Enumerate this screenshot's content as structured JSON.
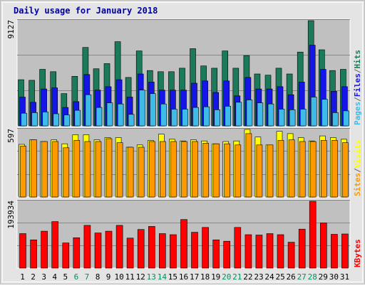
{
  "chart_data": {
    "type": "bar",
    "title": "Daily usage for January 2018",
    "categories": [
      "1",
      "2",
      "3",
      "4",
      "5",
      "6",
      "7",
      "8",
      "9",
      "10",
      "11",
      "12",
      "13",
      "14",
      "15",
      "16",
      "17",
      "18",
      "19",
      "20",
      "21",
      "22",
      "23",
      "24",
      "25",
      "26",
      "27",
      "28",
      "29",
      "30",
      "31"
    ],
    "weekend_days": [
      "6",
      "7",
      "13",
      "14",
      "20",
      "21",
      "27",
      "28"
    ],
    "panels": [
      {
        "id": "hits",
        "ymax_label": "9127",
        "ylim": [
          0,
          9127
        ],
        "legend": [
          "Pages",
          "/",
          "Files",
          "/",
          "Hits"
        ],
        "legend_colors": [
          "#3ebbe8",
          "#666666",
          "#1515e8",
          "#666666",
          "#1a7a5a"
        ],
        "series": [
          {
            "name": "Hits",
            "color": "#1a7a5a",
            "values": [
              4000,
              3950,
              4900,
              4700,
              2800,
              4300,
              6800,
              4950,
              5400,
              7300,
              4200,
              6500,
              4800,
              4700,
              4700,
              5000,
              6700,
              5200,
              5000,
              6500,
              5000,
              6100,
              4500,
              4400,
              5000,
              4500,
              6400,
              9127,
              6600,
              4800,
              4900
            ]
          },
          {
            "name": "Files",
            "color": "#1515e8",
            "values": [
              2500,
              2050,
              3200,
              3300,
              1600,
              2100,
              4450,
              3100,
              3400,
              4000,
              2500,
              4500,
              3800,
              3100,
              3100,
              3100,
              3700,
              3900,
              2900,
              3900,
              2600,
              4200,
              3200,
              3200,
              3400,
              2700,
              3800,
              7000,
              4900,
              3000,
              3400
            ]
          },
          {
            "name": "Pages",
            "color": "#3ebbe8",
            "values": [
              1100,
              1150,
              1200,
              1050,
              950,
              1350,
              2700,
              1600,
              2000,
              1900,
              1000,
              3100,
              2800,
              1900,
              1450,
              1450,
              1600,
              1650,
              1400,
              1700,
              2050,
              2250,
              2000,
              1900,
              1450,
              1400,
              1450,
              2500,
              2300,
              1150,
              1300
            ]
          }
        ]
      },
      {
        "id": "visits",
        "ymax_label": "597",
        "ylim": [
          0,
          597
        ],
        "legend": [
          "Sites",
          "/",
          "Visits"
        ],
        "legend_colors": [
          "#ff9900",
          "#666666",
          "#ffff00"
        ],
        "series": [
          {
            "name": "Visits",
            "color": "#ffff00",
            "values": [
              465,
              505,
              490,
              505,
              470,
              550,
              550,
              505,
              525,
              525,
              440,
              460,
              500,
              555,
              510,
              495,
              505,
              495,
              470,
              490,
              495,
              597,
              530,
              460,
              580,
              560,
              525,
              495,
              540,
              525,
              510
            ]
          },
          {
            "name": "Sites",
            "color": "#ff9900",
            "values": [
              450,
              505,
              490,
              490,
              435,
              500,
              490,
              490,
              515,
              480,
              440,
              440,
              490,
              490,
              490,
              490,
              490,
              475,
              470,
              470,
              460,
              560,
              460,
              460,
              500,
              505,
              490,
              490,
              500,
              500,
              480
            ]
          }
        ]
      },
      {
        "id": "kbytes",
        "ymax_label": "193934",
        "ylim": [
          0,
          193934
        ],
        "legend": [
          "KBytes"
        ],
        "legend_colors": [
          "#ff0000"
        ],
        "series": [
          {
            "name": "KBytes",
            "color": "#ff0000",
            "values": [
              100000,
              82000,
              107000,
              135000,
              73000,
              88000,
              124000,
              102000,
              107000,
              124000,
              87000,
              112000,
              121000,
              100000,
              97000,
              141000,
              104000,
              118000,
              82000,
              78000,
              118000,
              97000,
              96000,
              100000,
              97000,
              75000,
              113000,
              193934,
              131000,
              98000,
              99000
            ]
          }
        ]
      }
    ],
    "colors": {
      "background": "#c0c0c0",
      "frame": "#e0e0e0",
      "title": "#0000a0",
      "weekday_label": "#000000",
      "weekend_label": "#009060",
      "grid": "#888888",
      "bar_outline": "#000000"
    },
    "grid": true
  }
}
